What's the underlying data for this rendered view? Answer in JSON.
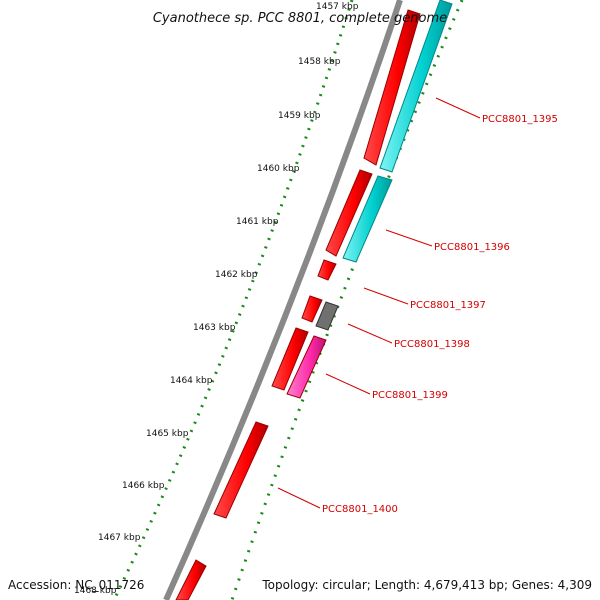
{
  "title": "Cyanothece sp. PCC 8801, complete genome",
  "footer": {
    "accession": "Accession: NC_011726",
    "topology": "Topology: circular; Length: 4,679,413 bp; Genes: 4,309"
  },
  "ticks": [
    "1457 kbp",
    "1458 kbp",
    "1459 kbp",
    "1460 kbp",
    "1461 kbp",
    "1462 kbp",
    "1463 kbp",
    "1464 kbp",
    "1465 kbp",
    "1466 kbp",
    "1467 kbp",
    "1468 kbp"
  ],
  "genes": [
    {
      "label": "PCC8801_1395",
      "color": "#ff0000"
    },
    {
      "label": "PCC8801_1396",
      "color": "#ff0000"
    },
    {
      "label": "PCC8801_1397",
      "color": "#ff0000"
    },
    {
      "label": "PCC8801_1398",
      "color": "#ff0000"
    },
    {
      "label": "PCC8801_1399",
      "color": "#ff0000"
    },
    {
      "label": "PCC8801_1400",
      "color": "#ff0000"
    }
  ],
  "colors": {
    "backbone": "#888888",
    "red": "#ff0000",
    "cyan": "#00d0d0",
    "gray": "#707070",
    "magenta": "#ff2aa8",
    "ticks": "#1a8a1a",
    "label": "#d40000"
  }
}
